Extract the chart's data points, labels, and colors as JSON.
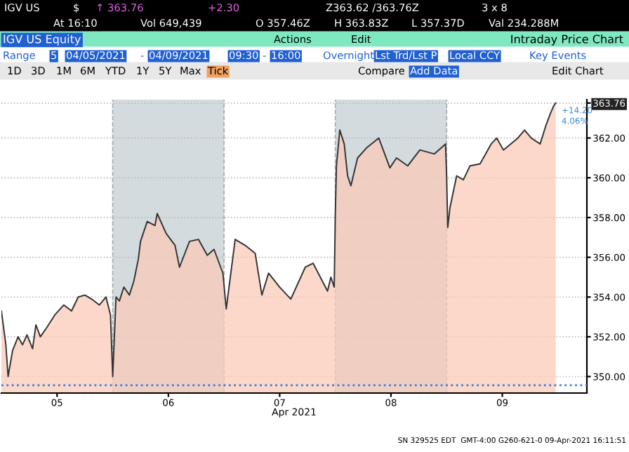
{
  "chart_data": {
    "type": "area",
    "title": "IGV US Equity",
    "subtitle": "Intraday Price Chart",
    "xlabel": "Apr 2021",
    "annotations": [
      "IGV US",
      "$",
      "↑ 363.76",
      "+2.30",
      "Z363.62 /363.76Z",
      "3 x 8",
      "At 16:10",
      "Vol 649,439",
      "O 357.46Z",
      "H 363.83Z",
      "L 357.37D",
      "Val 234.288M",
      "Actions",
      "Edit",
      "Range",
      "5",
      "04/05/2021",
      "-",
      "04/09/2021",
      "09:30",
      "-",
      "16:00",
      "Overnight",
      "Lst Trd/Lst P",
      "Local CCY",
      "Key Events",
      "1D",
      "3D",
      "1M",
      "6M",
      "YTD",
      "1Y",
      "5Y",
      "Max",
      "Tick",
      "Compare",
      "Add Data",
      "Edit Chart",
      "SN 329525 EDT  GMT-4:00 G260-621-0 09-Apr-2021 16:11:51",
      {
        "text": "+14.20",
        "x": 9.48,
        "y": 363.76
      },
      {
        "text": "4.06%",
        "x": 9.48,
        "y": 363.76
      }
    ],
    "x": [
      4.5,
      4.54,
      4.56,
      4.6,
      4.65,
      4.69,
      4.73,
      4.78,
      4.81,
      4.85,
      4.9,
      4.98,
      5.06,
      5.13,
      5.19,
      5.25,
      5.31,
      5.38,
      5.44,
      5.48,
      5.5,
      5.53,
      5.56,
      5.6,
      5.65,
      5.69,
      5.73,
      5.75,
      5.81,
      5.88,
      5.9,
      5.98,
      6.06,
      6.1,
      6.19,
      6.27,
      6.35,
      6.41,
      6.49,
      6.52,
      6.6,
      6.69,
      6.78,
      6.84,
      6.9,
      7.0,
      7.1,
      7.23,
      7.3,
      7.43,
      7.46,
      7.49,
      7.5,
      7.51,
      7.54,
      7.58,
      7.61,
      7.64,
      7.7,
      7.78,
      7.89,
      7.99,
      8.05,
      8.15,
      8.26,
      8.39,
      8.49,
      8.5,
      8.51,
      8.53,
      8.59,
      8.65,
      8.71,
      8.8,
      8.9,
      8.95,
      9.01,
      9.14,
      9.2,
      9.26,
      9.34,
      9.39,
      9.43,
      9.46,
      9.48
    ],
    "series": [
      {
        "color": "#f9cbb8",
        "values": [
          353.3,
          351.6,
          350.0,
          351.3,
          352.0,
          351.6,
          352.1,
          351.4,
          352.6,
          352.0,
          352.4,
          353.1,
          353.6,
          353.3,
          354.0,
          354.1,
          353.9,
          353.6,
          354.0,
          353.1,
          350.0,
          354.0,
          353.8,
          354.5,
          354.1,
          354.8,
          355.9,
          356.8,
          357.8,
          357.6,
          358.2,
          357.2,
          356.6,
          355.5,
          356.8,
          356.9,
          356.1,
          356.4,
          355.2,
          353.4,
          356.9,
          356.6,
          356.2,
          354.1,
          355.2,
          354.5,
          353.9,
          355.5,
          355.7,
          354.3,
          355.0,
          354.5,
          358.2,
          360.6,
          362.4,
          361.7,
          360.1,
          359.6,
          361.0,
          361.5,
          362.0,
          360.5,
          361.0,
          360.6,
          361.4,
          361.2,
          361.7,
          360.1,
          357.5,
          358.5,
          360.1,
          359.9,
          360.6,
          360.7,
          361.7,
          362.0,
          361.4,
          362.0,
          362.4,
          362.0,
          361.7,
          362.6,
          363.2,
          363.6,
          363.76
        ]
      }
    ],
    "xlim": [
      4.5,
      9.76
    ],
    "ylim": [
      349.17,
      363.93
    ],
    "xticks": [
      {
        "value": 5,
        "label": "05"
      },
      {
        "value": 6,
        "label": "06"
      },
      {
        "value": 7,
        "label": "07"
      },
      {
        "value": 8,
        "label": "08"
      },
      {
        "value": 9,
        "label": "09"
      }
    ],
    "yticks": [
      {
        "value": 350,
        "label": "350.00"
      },
      {
        "value": 352,
        "label": "352.00"
      },
      {
        "value": 354,
        "label": "354.00"
      },
      {
        "value": 356,
        "label": "356.00"
      },
      {
        "value": 358,
        "label": "358.00"
      },
      {
        "value": 360,
        "label": "360.00"
      },
      {
        "value": 362,
        "label": "362.00"
      },
      {
        "value": 363.76,
        "label": "363.76"
      }
    ],
    "bands": [
      {
        "axis": "x",
        "from": 5.5,
        "to": 6.5,
        "color": "#d3dbde"
      },
      {
        "axis": "x",
        "from": 7.5,
        "to": 8.5,
        "color": "#d3dbde"
      }
    ],
    "ref_lines": [
      {
        "axis": "y",
        "value": 349.56,
        "color": "#3a7bd5",
        "line_style": "dotted"
      }
    ],
    "grid": "y"
  }
}
